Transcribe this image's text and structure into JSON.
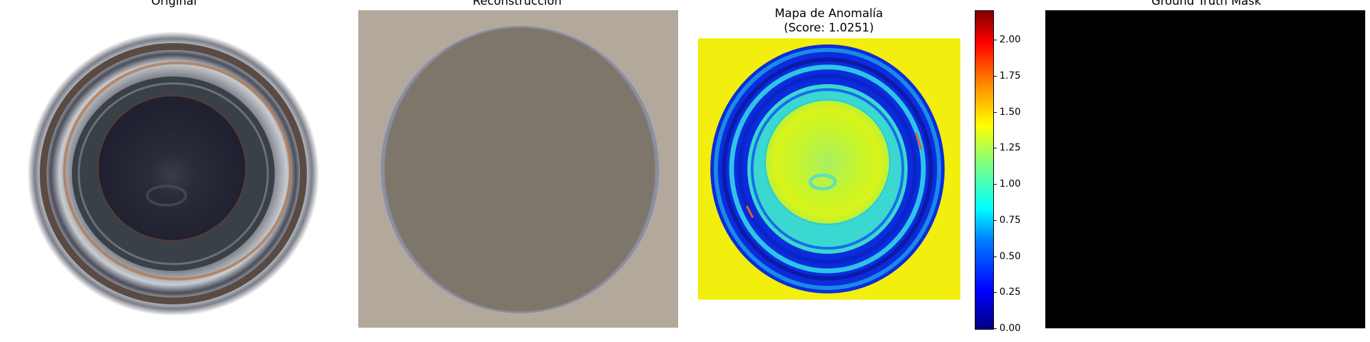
{
  "panels": {
    "original": {
      "title": "Original"
    },
    "reconstruction": {
      "title": "Reconstrucción"
    },
    "anomaly": {
      "title_line1": "Mapa de Anomalía",
      "title_line2": "(Score: 1.0251)"
    },
    "mask": {
      "title": "Ground Truth Mask"
    }
  },
  "colorbar": {
    "min": 0.0,
    "max": 2.2,
    "ticks": [
      "0.00",
      "0.25",
      "0.50",
      "0.75",
      "1.00",
      "1.25",
      "1.50",
      "1.75",
      "2.00"
    ],
    "tick_values": [
      0.0,
      0.25,
      0.5,
      0.75,
      1.0,
      1.25,
      1.5,
      1.75,
      2.0
    ]
  },
  "colors": {
    "reconstruction_background": "#b2a89c",
    "reconstruction_disc": "#7e766b",
    "anomaly_background": "#f2ee0e",
    "mask_fill": "#000000"
  }
}
